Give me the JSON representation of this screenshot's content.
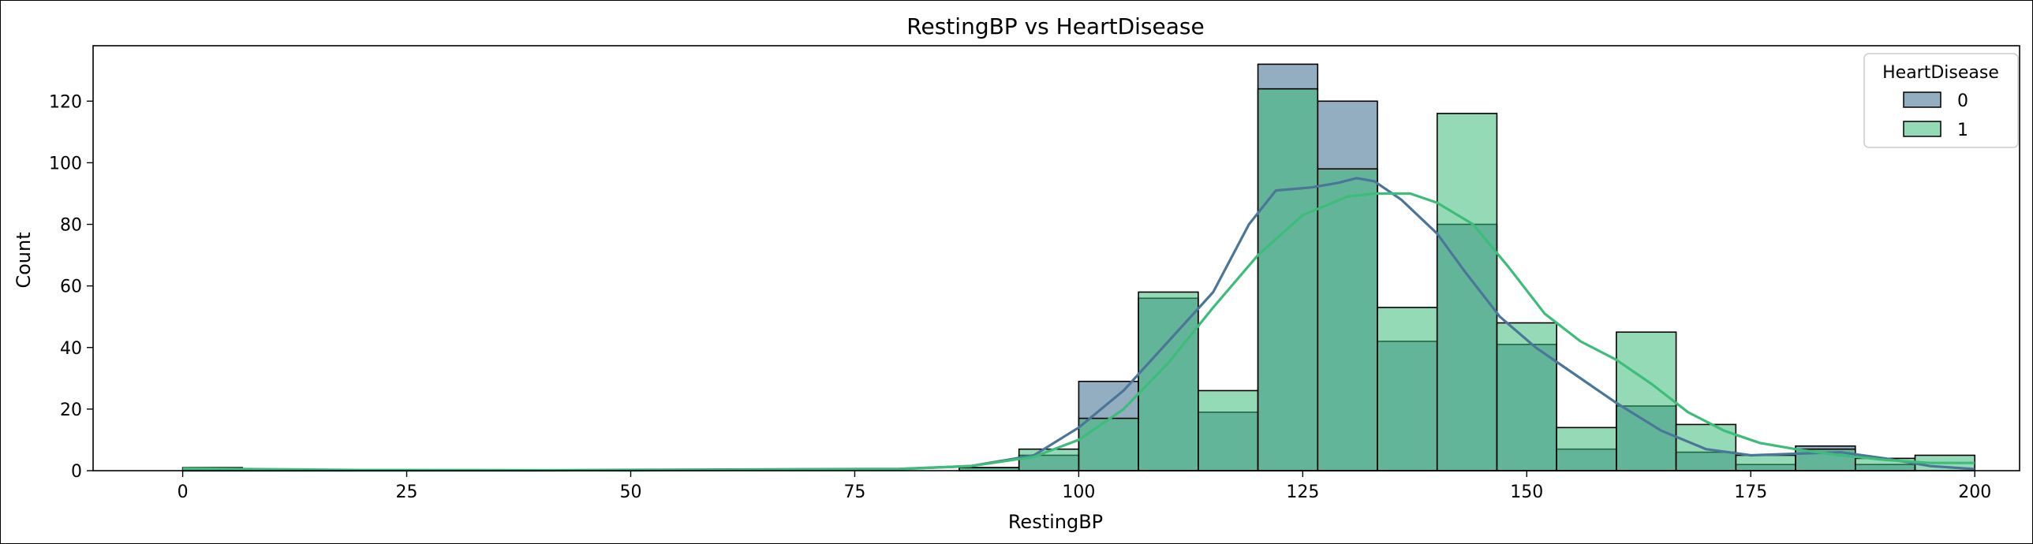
{
  "chart_data": {
    "type": "histogram",
    "title": "RestingBP vs HeartDisease",
    "xlabel": "RestingBP",
    "ylabel": "Count",
    "xlim": [
      -10,
      205
    ],
    "ylim": [
      0,
      138
    ],
    "xticks": [
      0,
      25,
      50,
      75,
      100,
      125,
      150,
      175,
      200
    ],
    "yticks": [
      0,
      20,
      40,
      60,
      80,
      100,
      120
    ],
    "bin_width": 6.667,
    "bin_edges": [
      0,
      6.667,
      13.333,
      20,
      26.667,
      33.333,
      40,
      46.667,
      53.333,
      60,
      66.667,
      73.333,
      80,
      86.667,
      93.333,
      100,
      106.667,
      113.333,
      120,
      126.667,
      133.333,
      140,
      146.667,
      153.333,
      160,
      166.667,
      173.333,
      180,
      186.667,
      193.333,
      200
    ],
    "legend": {
      "title": "HeartDisease",
      "position": "top-right"
    },
    "series": [
      {
        "name": "0",
        "color": "#4b7698",
        "counts": [
          0,
          0,
          0,
          0,
          0,
          0,
          0,
          0,
          0,
          0,
          0,
          0,
          0,
          1,
          5,
          29,
          56,
          19,
          132,
          120,
          42,
          80,
          41,
          7,
          21,
          6,
          2,
          8,
          2,
          0
        ],
        "kde": [
          [
            0,
            0.1
          ],
          [
            40,
            0.1
          ],
          [
            80,
            0.6
          ],
          [
            88,
            1.5
          ],
          [
            95,
            5
          ],
          [
            100,
            14
          ],
          [
            105,
            26
          ],
          [
            110,
            42
          ],
          [
            115,
            58
          ],
          [
            119,
            80
          ],
          [
            122,
            91
          ],
          [
            126,
            92
          ],
          [
            129,
            93.5
          ],
          [
            131,
            95
          ],
          [
            133,
            94
          ],
          [
            136,
            88
          ],
          [
            140,
            77
          ],
          [
            143,
            65
          ],
          [
            147,
            50
          ],
          [
            151,
            40
          ],
          [
            155,
            32
          ],
          [
            160,
            22
          ],
          [
            165,
            13
          ],
          [
            170,
            7
          ],
          [
            175,
            5
          ],
          [
            180,
            5.5
          ],
          [
            185,
            6
          ],
          [
            190,
            4
          ],
          [
            195,
            1.5
          ],
          [
            200,
            0.5
          ]
        ]
      },
      {
        "name": "1",
        "color": "#3dbc7a",
        "counts": [
          1,
          0,
          0,
          0,
          0,
          0,
          0,
          0,
          0,
          0,
          0,
          0,
          0,
          1,
          7,
          17,
          58,
          26,
          124,
          98,
          53,
          116,
          48,
          14,
          45,
          15,
          5,
          7,
          4,
          5
        ],
        "kde": [
          [
            0,
            0.7
          ],
          [
            5,
            0.6
          ],
          [
            20,
            0.2
          ],
          [
            50,
            0.1
          ],
          [
            80,
            0.5
          ],
          [
            88,
            1.5
          ],
          [
            95,
            4.5
          ],
          [
            100,
            10
          ],
          [
            105,
            20
          ],
          [
            110,
            35
          ],
          [
            115,
            53
          ],
          [
            120,
            70
          ],
          [
            125,
            83
          ],
          [
            130,
            89
          ],
          [
            133,
            90
          ],
          [
            137,
            90
          ],
          [
            140,
            87
          ],
          [
            144,
            80
          ],
          [
            148,
            66
          ],
          [
            152,
            51
          ],
          [
            156,
            42
          ],
          [
            160,
            36
          ],
          [
            164,
            28
          ],
          [
            168,
            19
          ],
          [
            172,
            13
          ],
          [
            176,
            9
          ],
          [
            180,
            7
          ],
          [
            185,
            5
          ],
          [
            190,
            3.5
          ],
          [
            195,
            2.5
          ],
          [
            200,
            2.5
          ]
        ]
      }
    ]
  }
}
